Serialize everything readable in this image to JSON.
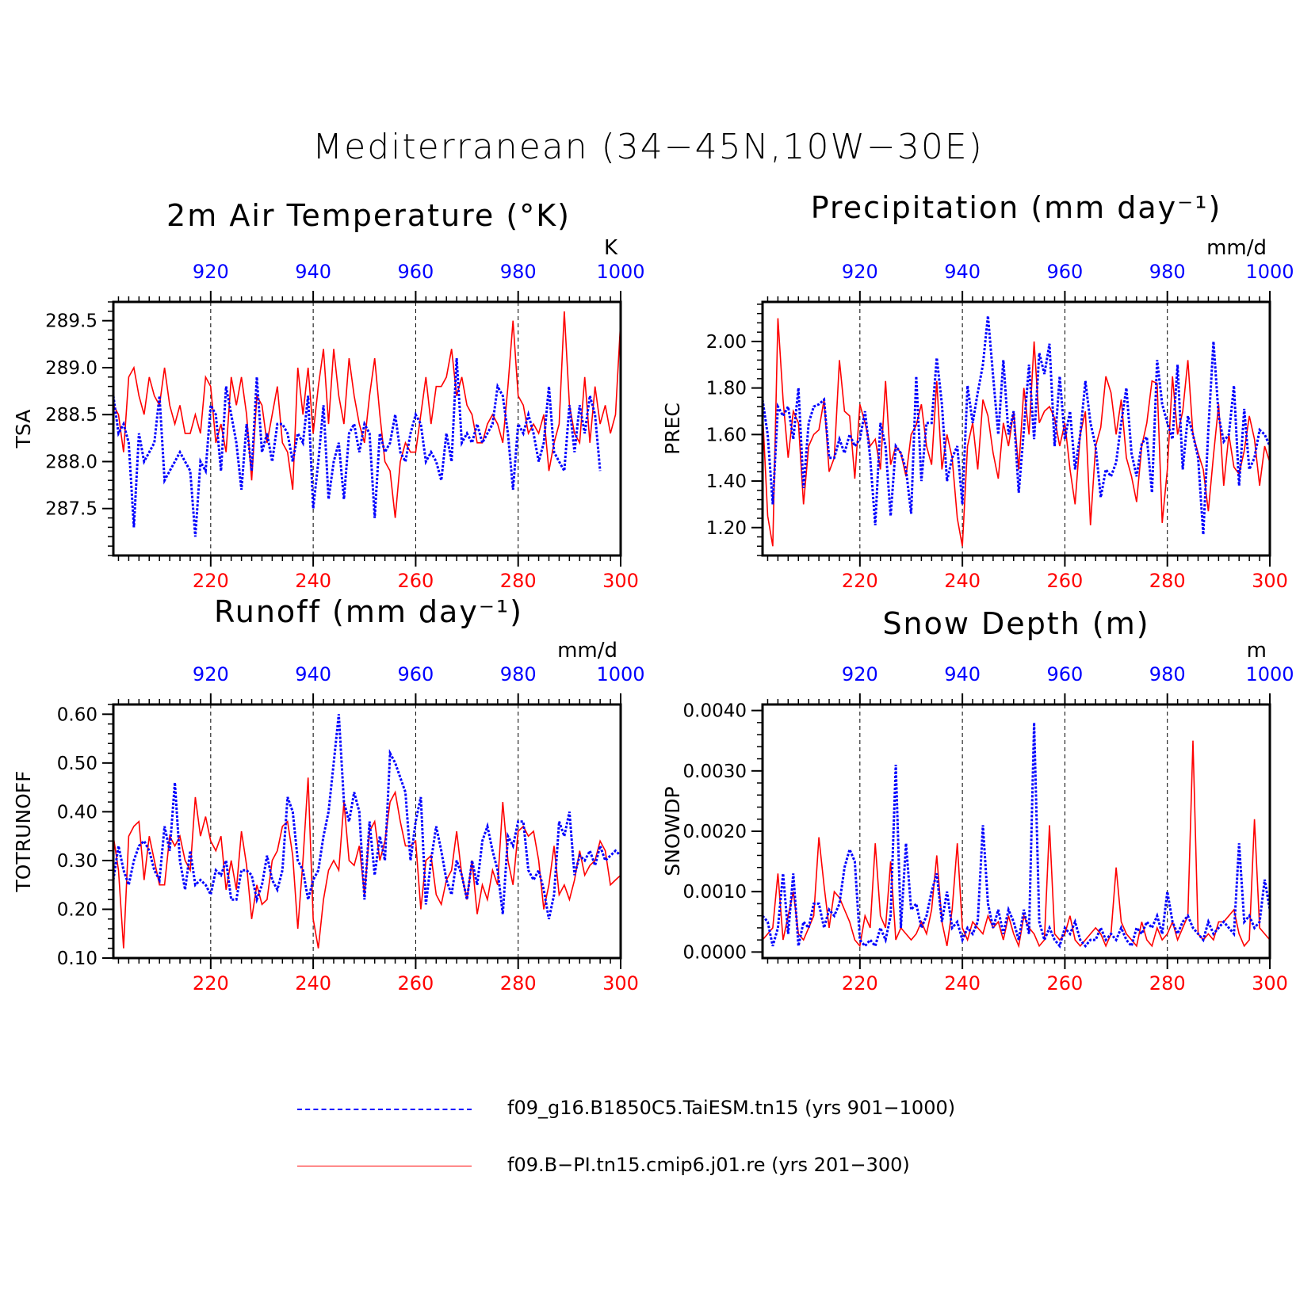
{
  "title": "Mediterranean (34−45N,10W−30E)",
  "legend": [
    {
      "label": "f09_g16.B1850C5.TaiESM.tn15 (yrs 901−1000)",
      "color": "#0000ff",
      "style": "dashed"
    },
    {
      "label": "f09.B−PI.tn15.cmip6.j01.re (yrs 201−300)",
      "color": "#ff0000",
      "style": "solid"
    }
  ],
  "colors": {
    "series_blue": "#0000ff",
    "series_red": "#ff0000",
    "axis": "#000000"
  },
  "chart_data": [
    {
      "type": "line",
      "title": "2m Air Temperature (°K)",
      "ylabel": "TSA",
      "units": "K",
      "ylim": [
        287.0,
        289.7
      ],
      "yticks": [
        "287.5",
        "288.0",
        "288.5",
        "289.0",
        "289.5"
      ],
      "x_bottom": {
        "range": [
          201,
          300
        ],
        "ticks": [
          "220",
          "240",
          "260",
          "280",
          "300"
        ],
        "color": "#ff0000"
      },
      "x_top": {
        "range": [
          901,
          1000
        ],
        "ticks": [
          "920",
          "940",
          "960",
          "980",
          "1000"
        ],
        "color": "#0000ff"
      },
      "grid": "vertical dashed",
      "series": [
        {
          "name": "f09.B−PI.tn15.cmip6.j01.re (yrs 201−300)",
          "color": "#ff0000",
          "style": "solid",
          "values": [
            288.6,
            288.5,
            288.1,
            288.9,
            289.0,
            288.7,
            288.5,
            288.9,
            288.7,
            288.6,
            289.0,
            288.6,
            288.4,
            288.6,
            288.3,
            288.3,
            288.5,
            288.3,
            288.9,
            288.8,
            288.2,
            288.4,
            288.1,
            288.9,
            288.6,
            288.9,
            288.5,
            287.8,
            288.7,
            288.6,
            288.2,
            288.5,
            288.8,
            288.2,
            288.1,
            287.7,
            289.0,
            288.5,
            289.0,
            288.3,
            288.8,
            289.2,
            288.4,
            289.2,
            288.7,
            288.4,
            289.1,
            288.7,
            288.4,
            288.2,
            288.7,
            289.1,
            288.5,
            288.0,
            287.9,
            287.4,
            288.0,
            288.2,
            288.1,
            288.1,
            288.5,
            288.9,
            288.4,
            288.8,
            288.8,
            288.9,
            289.2,
            288.7,
            288.9,
            288.6,
            288.5,
            288.2,
            288.2,
            288.4,
            288.5,
            288.4,
            288.2,
            288.8,
            289.5,
            288.7,
            288.6,
            288.3,
            288.4,
            288.3,
            288.5,
            287.9,
            288.2,
            288.4,
            289.6,
            288.6,
            288.3,
            288.2,
            288.9,
            288.2,
            288.8,
            288.4,
            288.6,
            288.3,
            288.5,
            289.5
          ]
        },
        {
          "name": "f09_g16.B1850C5.TaiESM.tn15 (yrs 901−1000)",
          "color": "#0000ff",
          "style": "dashed",
          "values": [
            288.7,
            288.3,
            288.4,
            288.2,
            287.3,
            288.3,
            288.0,
            288.1,
            288.2,
            288.7,
            287.8,
            287.9,
            288.0,
            288.1,
            288.0,
            287.9,
            287.2,
            288.0,
            287.9,
            288.6,
            288.5,
            287.9,
            288.8,
            288.5,
            288.2,
            287.7,
            288.4,
            287.9,
            288.9,
            288.1,
            288.3,
            288.0,
            288.4,
            288.4,
            288.3,
            288.0,
            288.3,
            288.2,
            288.7,
            287.5,
            288.0,
            288.6,
            287.6,
            288.0,
            288.2,
            287.6,
            288.3,
            288.4,
            288.1,
            288.4,
            288.3,
            287.4,
            288.3,
            288.1,
            288.2,
            288.5,
            288.1,
            288.0,
            288.3,
            288.5,
            288.4,
            288.0,
            288.1,
            288.0,
            287.8,
            288.3,
            288.0,
            289.1,
            288.2,
            288.3,
            288.2,
            288.4,
            288.2,
            288.3,
            288.4,
            288.8,
            288.7,
            288.3,
            287.7,
            288.4,
            288.3,
            288.5,
            288.3,
            288.0,
            288.2,
            288.8,
            288.1,
            288.0,
            287.9,
            288.6,
            288.1,
            288.6,
            288.3,
            288.7,
            288.5,
            287.9
          ]
        }
      ]
    },
    {
      "type": "line",
      "title": "Precipitation (mm day⁻¹)",
      "ylabel": "PREC",
      "units": "mm/d",
      "ylim": [
        1.08,
        2.17
      ],
      "yticks": [
        "1.20",
        "1.40",
        "1.60",
        "1.80",
        "2.00"
      ],
      "x_bottom": {
        "range": [
          201,
          300
        ],
        "ticks": [
          "220",
          "240",
          "260",
          "280",
          "300"
        ],
        "color": "#ff0000"
      },
      "x_top": {
        "range": [
          901,
          1000
        ],
        "ticks": [
          "920",
          "940",
          "960",
          "980",
          "1000"
        ],
        "color": "#0000ff"
      },
      "grid": "vertical dashed",
      "series": [
        {
          "name": "f09.B−PI.tn15.cmip6.j01.re (yrs 201−300)",
          "color": "#ff0000",
          "style": "solid",
          "values": [
            1.7,
            1.25,
            1.12,
            2.1,
            1.75,
            1.5,
            1.7,
            1.65,
            1.3,
            1.55,
            1.6,
            1.62,
            1.75,
            1.44,
            1.5,
            1.92,
            1.7,
            1.68,
            1.41,
            1.73,
            1.65,
            1.55,
            1.58,
            1.45,
            1.83,
            1.47,
            1.55,
            1.52,
            1.42,
            1.6,
            1.64,
            1.73,
            1.55,
            1.47,
            1.83,
            1.45,
            1.6,
            1.5,
            1.24,
            1.12,
            1.55,
            1.65,
            1.45,
            1.75,
            1.68,
            1.52,
            1.41,
            1.65,
            1.55,
            1.7,
            1.45,
            1.8,
            1.6,
            2.0,
            1.65,
            1.7,
            1.72,
            1.67,
            1.55,
            1.65,
            1.45,
            1.3,
            1.6,
            1.7,
            1.21,
            1.55,
            1.63,
            1.85,
            1.78,
            1.6,
            1.75,
            1.5,
            1.42,
            1.31,
            1.55,
            1.65,
            1.83,
            1.82,
            1.22,
            1.45,
            1.85,
            1.6,
            1.7,
            1.92,
            1.6,
            1.52,
            1.45,
            1.27,
            1.51,
            1.73,
            1.38,
            1.6,
            1.46,
            1.43,
            1.53,
            1.68,
            1.58,
            1.38,
            1.55,
            1.48
          ]
        },
        {
          "name": "f09_g16.B1850C5.TaiESM.tn15 (yrs 901−1000)",
          "color": "#0000ff",
          "style": "dashed",
          "values": [
            1.75,
            1.6,
            1.3,
            1.72,
            1.68,
            1.72,
            1.58,
            1.8,
            1.37,
            1.65,
            1.72,
            1.73,
            1.75,
            1.5,
            1.5,
            1.58,
            1.52,
            1.6,
            1.55,
            1.58,
            1.7,
            1.5,
            1.21,
            1.65,
            1.55,
            1.25,
            1.55,
            1.52,
            1.45,
            1.26,
            1.85,
            1.4,
            1.65,
            1.65,
            1.93,
            1.73,
            1.4,
            1.5,
            1.55,
            1.3,
            1.81,
            1.65,
            1.78,
            1.9,
            2.11,
            1.85,
            1.6,
            1.92,
            1.6,
            1.7,
            1.35,
            1.62,
            1.9,
            1.58,
            1.95,
            1.86,
            1.99,
            1.55,
            1.85,
            1.58,
            1.7,
            1.45,
            1.6,
            1.83,
            1.65,
            1.55,
            1.33,
            1.45,
            1.42,
            1.48,
            1.65,
            1.8,
            1.52,
            1.42,
            1.56,
            1.59,
            1.35,
            1.92,
            1.73,
            1.65,
            1.58,
            1.9,
            1.45,
            1.68,
            1.6,
            1.5,
            1.17,
            1.62,
            2.0,
            1.68,
            1.57,
            1.6,
            1.81,
            1.38,
            1.71,
            1.45,
            1.5,
            1.62,
            1.6,
            1.55
          ]
        }
      ]
    },
    {
      "type": "line",
      "title": "Runoff (mm day⁻¹)",
      "ylabel": "TOTRUNOFF",
      "units": "mm/d",
      "ylim": [
        0.1,
        0.62
      ],
      "yticks": [
        "0.10",
        "0.20",
        "0.30",
        "0.40",
        "0.50",
        "0.60"
      ],
      "x_bottom": {
        "range": [
          201,
          300
        ],
        "ticks": [
          "220",
          "240",
          "260",
          "280",
          "300"
        ],
        "color": "#ff0000"
      },
      "x_top": {
        "range": [
          901,
          1000
        ],
        "ticks": [
          "920",
          "940",
          "960",
          "980",
          "1000"
        ],
        "color": "#0000ff"
      },
      "grid": "vertical dashed",
      "series": [
        {
          "name": "f09.B−PI.tn15.cmip6.j01.re (yrs 201−300)",
          "color": "#ff0000",
          "style": "solid",
          "values": [
            0.35,
            0.28,
            0.12,
            0.35,
            0.37,
            0.38,
            0.26,
            0.35,
            0.3,
            0.25,
            0.25,
            0.35,
            0.33,
            0.35,
            0.3,
            0.28,
            0.43,
            0.35,
            0.39,
            0.34,
            0.32,
            0.35,
            0.24,
            0.3,
            0.24,
            0.36,
            0.29,
            0.18,
            0.25,
            0.21,
            0.22,
            0.3,
            0.32,
            0.37,
            0.38,
            0.31,
            0.16,
            0.3,
            0.47,
            0.18,
            0.12,
            0.22,
            0.28,
            0.3,
            0.28,
            0.42,
            0.3,
            0.29,
            0.33,
            0.23,
            0.36,
            0.38,
            0.3,
            0.34,
            0.42,
            0.44,
            0.38,
            0.33,
            0.33,
            0.34,
            0.2,
            0.3,
            0.31,
            0.23,
            0.21,
            0.26,
            0.28,
            0.36,
            0.27,
            0.22,
            0.3,
            0.19,
            0.25,
            0.22,
            0.28,
            0.25,
            0.42,
            0.3,
            0.25,
            0.36,
            0.37,
            0.35,
            0.36,
            0.3,
            0.2,
            0.25,
            0.33,
            0.23,
            0.25,
            0.22,
            0.26,
            0.32,
            0.27,
            0.29,
            0.3,
            0.34,
            0.32,
            0.25,
            0.26,
            0.27
          ]
        },
        {
          "name": "f09_g16.B1850C5.TaiESM.tn15 (yrs 901−1000)",
          "color": "#0000ff",
          "style": "dashed",
          "values": [
            0.26,
            0.33,
            0.28,
            0.25,
            0.3,
            0.33,
            0.34,
            0.32,
            0.28,
            0.26,
            0.37,
            0.32,
            0.46,
            0.3,
            0.24,
            0.32,
            0.25,
            0.26,
            0.25,
            0.23,
            0.28,
            0.27,
            0.3,
            0.22,
            0.22,
            0.28,
            0.28,
            0.27,
            0.22,
            0.25,
            0.31,
            0.26,
            0.24,
            0.28,
            0.43,
            0.4,
            0.3,
            0.28,
            0.22,
            0.26,
            0.28,
            0.35,
            0.4,
            0.5,
            0.6,
            0.42,
            0.38,
            0.44,
            0.4,
            0.22,
            0.38,
            0.27,
            0.35,
            0.3,
            0.52,
            0.5,
            0.47,
            0.44,
            0.3,
            0.38,
            0.43,
            0.21,
            0.3,
            0.37,
            0.32,
            0.26,
            0.23,
            0.3,
            0.27,
            0.22,
            0.3,
            0.25,
            0.34,
            0.37,
            0.32,
            0.28,
            0.19,
            0.35,
            0.33,
            0.38,
            0.38,
            0.28,
            0.26,
            0.28,
            0.24,
            0.18,
            0.23,
            0.38,
            0.35,
            0.4,
            0.27,
            0.31,
            0.3,
            0.32,
            0.29,
            0.33,
            0.3,
            0.31,
            0.32,
            0.31
          ]
        }
      ]
    },
    {
      "type": "line",
      "title": "Snow Depth (m)",
      "ylabel": "SNOWDP",
      "units": "m",
      "ylim": [
        -0.0001,
        0.0041
      ],
      "yticks": [
        "0.0000",
        "0.0010",
        "0.0020",
        "0.0030",
        "0.0040"
      ],
      "x_bottom": {
        "range": [
          201,
          300
        ],
        "ticks": [
          "220",
          "240",
          "260",
          "280",
          "300"
        ],
        "color": "#ff0000"
      },
      "x_top": {
        "range": [
          901,
          1000
        ],
        "ticks": [
          "920",
          "940",
          "960",
          "980",
          "1000"
        ],
        "color": "#0000ff"
      },
      "grid": "vertical dashed",
      "series": [
        {
          "name": "f09.B−PI.tn15.cmip6.j01.re (yrs 201−300)",
          "color": "#ff0000",
          "style": "solid",
          "values": [
            0.0002,
            0.0003,
            0.0004,
            0.0013,
            0.0002,
            0.0006,
            0.001,
            0.0003,
            0.0002,
            0.0004,
            0.0006,
            0.0019,
            0.0011,
            0.0004,
            0.001,
            0.0009,
            0.0007,
            0.0005,
            0.0002,
            0.0001,
            0.0006,
            0.0004,
            0.0018,
            0.0006,
            0.0004,
            0.0015,
            0.0002,
            0.0004,
            0.0003,
            0.0002,
            0.0003,
            0.0005,
            0.0003,
            0.0007,
            0.0016,
            0.0005,
            0.0001,
            0.0007,
            0.0018,
            0.0004,
            0.0002,
            0.0005,
            0.0004,
            0.0003,
            0.0006,
            0.0004,
            0.0005,
            0.0002,
            0.0006,
            0.0003,
            0.0001,
            0.0006,
            0.0004,
            0.0003,
            0.0001,
            0.0002,
            0.0021,
            0.0003,
            0.0002,
            0.0003,
            0.0006,
            0.0002,
            0.0001,
            0.0002,
            0.0003,
            0.0004,
            0.0003,
            0.0001,
            0.0003,
            0.0014,
            0.0005,
            0.0003,
            0.0002,
            0.0001,
            0.0005,
            0.0002,
            0.0001,
            0.0004,
            0.0002,
            0.0003,
            0.0005,
            0.0002,
            0.0004,
            0.0006,
            0.0035,
            0.0003,
            0.0002,
            0.0003,
            0.0002,
            0.0005,
            0.0005,
            0.0006,
            0.0007,
            0.0003,
            0.0001,
            0.0002,
            0.0022,
            0.0004,
            0.0003,
            0.0002
          ]
        },
        {
          "name": "f09_g16.B1850C5.TaiESM.tn15 (yrs 901−1000)",
          "color": "#0000ff",
          "style": "dashed",
          "values": [
            0.0006,
            0.0005,
            0.0001,
            0.0004,
            0.0013,
            0.0003,
            0.0013,
            0.0001,
            0.0005,
            0.0004,
            0.0008,
            0.0008,
            0.0004,
            0.0007,
            0.0006,
            0.0008,
            0.0014,
            0.0017,
            0.0015,
            0.0002,
            0.0001,
            0.0002,
            0.0001,
            0.0004,
            0.0002,
            0.0006,
            0.0031,
            0.0004,
            0.0018,
            0.0007,
            0.0008,
            0.0004,
            0.0006,
            0.001,
            0.0013,
            0.0005,
            0.001,
            0.0004,
            0.0005,
            0.0002,
            0.0004,
            0.0003,
            0.0005,
            0.0021,
            0.0008,
            0.0004,
            0.0007,
            0.0003,
            0.0007,
            0.0005,
            0.0002,
            0.0007,
            0.0003,
            0.0038,
            0.0005,
            0.0002,
            0.0004,
            0.0002,
            0.0001,
            0.0004,
            0.0003,
            0.0005,
            0.0002,
            0.0001,
            0.0002,
            0.0002,
            0.0004,
            0.0002,
            0.0003,
            0.0002,
            0.0004,
            0.0002,
            0.0001,
            0.0004,
            0.0003,
            0.0005,
            0.0004,
            0.0006,
            0.0003,
            0.001,
            0.0005,
            0.0003,
            0.0005,
            0.0006,
            0.0004,
            0.0003,
            0.0002,
            0.0005,
            0.0003,
            0.0004,
            0.0005,
            0.0004,
            0.0003,
            0.0018,
            0.0005,
            0.0006,
            0.0004,
            0.0005,
            0.0012,
            0.0007
          ]
        }
      ]
    }
  ]
}
